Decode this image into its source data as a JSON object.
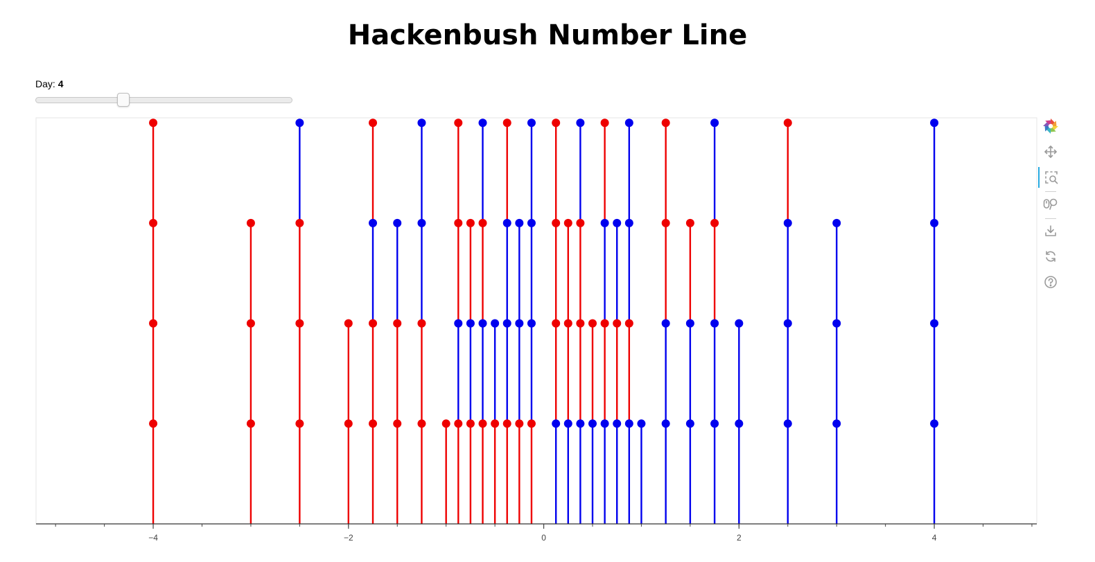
{
  "title": "Hackenbush Number Line",
  "slider": {
    "label": "Day: ",
    "value": "4",
    "min": 1,
    "max": 10
  },
  "toolbar": [
    {
      "name": "bokeh-logo-icon"
    },
    {
      "name": "pan-tool-icon"
    },
    {
      "name": "box-zoom-tool-icon"
    },
    {
      "name": "wheel-zoom-tool-icon"
    },
    {
      "name": "save-tool-icon"
    },
    {
      "name": "reset-tool-icon"
    },
    {
      "name": "help-tool-icon"
    }
  ],
  "colors": {
    "red": "#ee0000",
    "blue": "#0000ee"
  },
  "chart_data": {
    "type": "line",
    "title": "",
    "xlabel": "",
    "ylabel": "",
    "xlim": [
      -5.2,
      5.05
    ],
    "ylim": [
      0,
      4.05
    ],
    "x_ticks": [
      -4,
      -2,
      0,
      2,
      4
    ],
    "x_tick_labels": [
      "−4",
      "−2",
      "0",
      "2",
      "4"
    ],
    "grid": false,
    "legend": "none",
    "stacks": [
      {
        "x": -4,
        "colors": [
          "R",
          "R",
          "R",
          "R"
        ]
      },
      {
        "x": -3,
        "colors": [
          "R",
          "R",
          "R"
        ]
      },
      {
        "x": -2.5,
        "colors": [
          "R",
          "R",
          "R",
          "B"
        ]
      },
      {
        "x": -2,
        "colors": [
          "R",
          "R"
        ]
      },
      {
        "x": -1.75,
        "colors": [
          "R",
          "R",
          "B",
          "R"
        ]
      },
      {
        "x": -1.5,
        "colors": [
          "R",
          "R",
          "B"
        ]
      },
      {
        "x": -1.25,
        "colors": [
          "R",
          "R",
          "B",
          "B"
        ]
      },
      {
        "x": -1,
        "colors": [
          "R"
        ]
      },
      {
        "x": -0.875,
        "colors": [
          "R",
          "B",
          "R",
          "R"
        ]
      },
      {
        "x": -0.75,
        "colors": [
          "R",
          "B",
          "R"
        ]
      },
      {
        "x": -0.625,
        "colors": [
          "R",
          "B",
          "R",
          "B"
        ]
      },
      {
        "x": -0.5,
        "colors": [
          "R",
          "B"
        ]
      },
      {
        "x": -0.375,
        "colors": [
          "R",
          "B",
          "B",
          "R"
        ]
      },
      {
        "x": -0.25,
        "colors": [
          "R",
          "B",
          "B"
        ]
      },
      {
        "x": -0.125,
        "colors": [
          "R",
          "B",
          "B",
          "B"
        ]
      },
      {
        "x": 0.125,
        "colors": [
          "B",
          "R",
          "R",
          "R"
        ]
      },
      {
        "x": 0.25,
        "colors": [
          "B",
          "R",
          "R"
        ]
      },
      {
        "x": 0.375,
        "colors": [
          "B",
          "R",
          "R",
          "B"
        ]
      },
      {
        "x": 0.5,
        "colors": [
          "B",
          "R"
        ]
      },
      {
        "x": 0.625,
        "colors": [
          "B",
          "R",
          "B",
          "R"
        ]
      },
      {
        "x": 0.75,
        "colors": [
          "B",
          "R",
          "B"
        ]
      },
      {
        "x": 0.875,
        "colors": [
          "B",
          "R",
          "B",
          "B"
        ]
      },
      {
        "x": 1,
        "colors": [
          "B"
        ]
      },
      {
        "x": 1.25,
        "colors": [
          "B",
          "B",
          "R",
          "R"
        ]
      },
      {
        "x": 1.5,
        "colors": [
          "B",
          "B",
          "R"
        ]
      },
      {
        "x": 1.75,
        "colors": [
          "B",
          "B",
          "R",
          "B"
        ]
      },
      {
        "x": 2,
        "colors": [
          "B",
          "B"
        ]
      },
      {
        "x": 2.5,
        "colors": [
          "B",
          "B",
          "B",
          "R"
        ]
      },
      {
        "x": 3,
        "colors": [
          "B",
          "B",
          "B"
        ]
      },
      {
        "x": 4,
        "colors": [
          "B",
          "B",
          "B",
          "B"
        ]
      }
    ]
  }
}
